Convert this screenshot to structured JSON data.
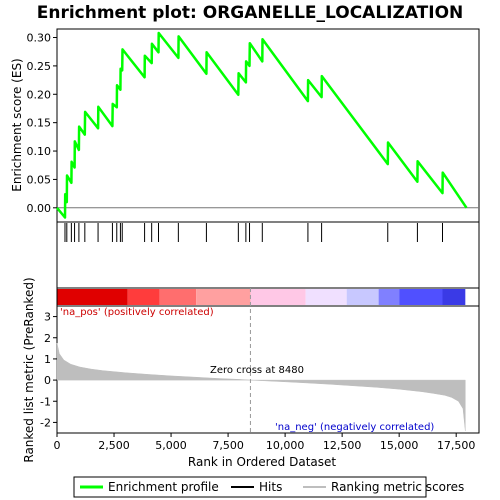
{
  "chart_data": {
    "type": "line",
    "title": "Enrichment plot: ORGANELLE_LOCALIZATION",
    "xlabel": "Rank in Ordered Dataset",
    "xlim": [
      0,
      18500
    ],
    "x_ticks": [
      0,
      2500,
      5000,
      7500,
      10000,
      12500,
      15000,
      17500
    ],
    "x_tick_labels": [
      "0",
      "2,500",
      "5,000",
      "7,500",
      "10,000",
      "12,500",
      "15,000",
      "17,500"
    ],
    "top_panel": {
      "ylabel": "Enrichment score (ES)",
      "ylim": [
        -0.025,
        0.315
      ],
      "y_ticks": [
        0.0,
        0.05,
        0.1,
        0.15,
        0.2,
        0.25,
        0.3
      ],
      "y_tick_labels": [
        "0.00",
        "0.05",
        "0.10",
        "0.15",
        "0.20",
        "0.25",
        "0.30"
      ],
      "grid": false,
      "series": [
        {
          "name": "Enrichment profile",
          "color": "#00ff00",
          "x": [
            0,
            350,
            360,
            430,
            440,
            630,
            640,
            770,
            780,
            960,
            970,
            1220,
            1230,
            1800,
            1810,
            2430,
            2440,
            2620,
            2630,
            2780,
            2790,
            2860,
            2870,
            3840,
            3850,
            4150,
            4160,
            4450,
            4460,
            5320,
            5330,
            6550,
            6560,
            7950,
            7960,
            8280,
            8290,
            8440,
            8450,
            9000,
            9010,
            11000,
            11010,
            11600,
            11610,
            14500,
            14510,
            15800,
            15810,
            16900,
            16910,
            17950
          ],
          "y": [
            0.0,
            -0.017,
            0.024,
            0.01,
            0.057,
            0.044,
            0.081,
            0.071,
            0.117,
            0.102,
            0.143,
            0.129,
            0.169,
            0.14,
            0.178,
            0.144,
            0.183,
            0.177,
            0.216,
            0.208,
            0.245,
            0.242,
            0.279,
            0.23,
            0.268,
            0.255,
            0.289,
            0.274,
            0.308,
            0.264,
            0.302,
            0.236,
            0.274,
            0.199,
            0.237,
            0.221,
            0.258,
            0.25,
            0.29,
            0.258,
            0.297,
            0.188,
            0.225,
            0.195,
            0.232,
            0.077,
            0.115,
            0.046,
            0.082,
            0.026,
            0.062,
            0.0
          ]
        }
      ]
    },
    "hits": {
      "name": "Hits",
      "color": "#000000",
      "x": [
        350,
        430,
        630,
        770,
        960,
        1220,
        1800,
        2430,
        2620,
        2780,
        2860,
        3840,
        4150,
        4450,
        5320,
        6550,
        7950,
        8280,
        8440,
        9000,
        11000,
        11600,
        14500,
        15800,
        16900
      ]
    },
    "rank_colorbar": {
      "colors_positive_to_negative": [
        "#e00000",
        "#ff3c3c",
        "#ff6e6e",
        "#ffa0a0",
        "#ffc8e6",
        "#f0e0ff",
        "#c8c8ff",
        "#8080ff",
        "#5050ff",
        "#3a3ae6",
        "#1a00c8"
      ],
      "boundaries": [
        0,
        3100,
        4500,
        6100,
        8480,
        10900,
        12700,
        14100,
        15000,
        16900,
        17900
      ]
    },
    "bottom_panel": {
      "ylabel": "Ranked list metric (PreRanked)",
      "ylim": [
        -2.5,
        3.5
      ],
      "y_ticks": [
        -2,
        -1,
        0,
        1,
        2,
        3
      ],
      "y_tick_labels": [
        "-2",
        "-1",
        "0",
        "1",
        "2",
        "3"
      ],
      "series": [
        {
          "name": "Ranking metric scores",
          "color": "#bebebe",
          "x": [
            0,
            100,
            300,
            600,
            1000,
            1500,
            2000,
            3000,
            4000,
            5000,
            6000,
            7000,
            8000,
            8480,
            9000,
            10000,
            11000,
            12000,
            13000,
            14000,
            15000,
            16000,
            16500,
            17000,
            17300,
            17600,
            17800,
            17900
          ],
          "y": [
            1.75,
            1.25,
            0.95,
            0.75,
            0.62,
            0.52,
            0.45,
            0.35,
            0.27,
            0.2,
            0.14,
            0.08,
            0.03,
            0.0,
            -0.03,
            -0.08,
            -0.14,
            -0.2,
            -0.27,
            -0.34,
            -0.43,
            -0.55,
            -0.63,
            -0.72,
            -0.82,
            -1.0,
            -1.35,
            -2.4
          ]
        }
      ],
      "zero_cross": 8480
    },
    "annotations": {
      "pos_label": "'na_pos' (positively correlated)",
      "neg_label": "'na_neg' (negatively correlated)",
      "zero_cross_label": "Zero cross at 8480"
    },
    "legend": {
      "placement": "bottom",
      "entries": [
        {
          "label": "Enrichment profile",
          "color": "#00ff00"
        },
        {
          "label": "Hits",
          "color": "#000000"
        },
        {
          "label": "Ranking metric scores",
          "color": "#bebebe"
        }
      ]
    }
  }
}
